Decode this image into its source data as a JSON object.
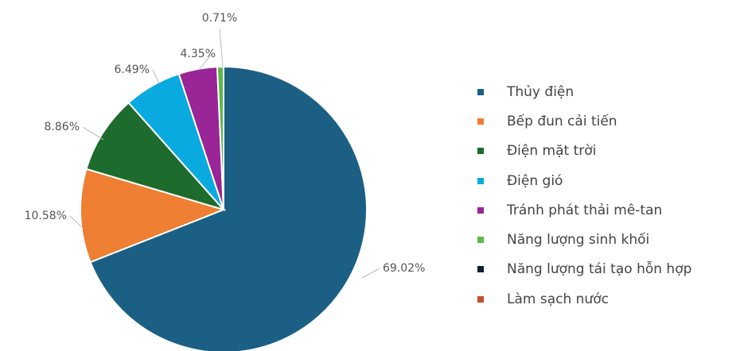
{
  "chart_data": {
    "type": "pie",
    "labels": [
      "Thủy điện",
      "Bếp đun cải tiến",
      "Điện mặt trời",
      "Điện gió",
      "Tránh phát thải mê-tan",
      "Năng lượng sinh khối",
      "Năng lượng tái tạo hỗn hợp",
      "Làm sạch nước"
    ],
    "values": [
      69.02,
      10.58,
      8.86,
      6.49,
      4.35,
      0.71,
      0,
      0
    ],
    "value_labels": [
      "69.02%",
      "10.58%",
      "8.86%",
      "6.49%",
      "4.35%",
      "0.71%",
      "",
      ""
    ],
    "colors": [
      "#1b5f85",
      "#ee7f33",
      "#1e6b2e",
      "#08aadf",
      "#9a2596",
      "#5cb847",
      "#0c1e2f",
      "#c2502a"
    ],
    "legend_position": "right"
  }
}
